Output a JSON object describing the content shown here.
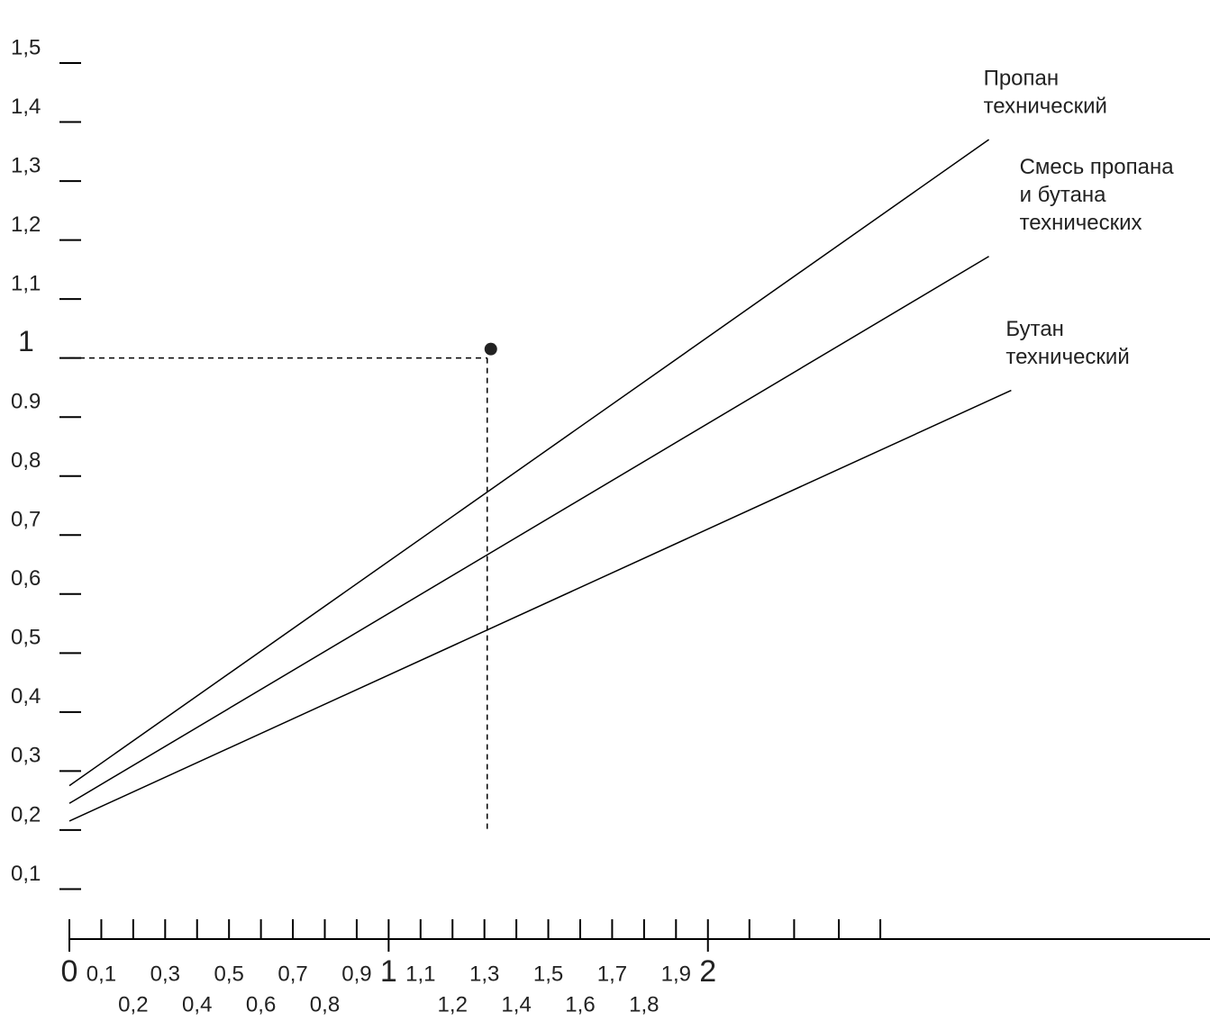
{
  "chart_data": {
    "type": "line",
    "xlim": [
      0,
      3.55
    ],
    "ylim": [
      0,
      1.5
    ],
    "xticks": [
      0,
      {
        "value": 0.1,
        "label": "0,1"
      },
      {
        "value": 0.2,
        "label": "0,2"
      },
      {
        "value": 0.3,
        "label": "0,3"
      },
      {
        "value": 0.4,
        "label": "0,4"
      },
      {
        "value": 0.5,
        "label": "0,5"
      },
      {
        "value": 0.6,
        "label": "0,6"
      },
      {
        "value": 0.7,
        "label": "0,7"
      },
      {
        "value": 0.8,
        "label": "0,8"
      },
      {
        "value": 0.9,
        "label": "0,9"
      },
      1,
      {
        "value": 1.1,
        "label": "1,1"
      },
      {
        "value": 1.2,
        "label": "1,2"
      },
      {
        "value": 1.3,
        "label": "1,3"
      },
      {
        "value": 1.4,
        "label": "1,4"
      },
      {
        "value": 1.5,
        "label": "1,5"
      },
      {
        "value": 1.6,
        "label": "1,6"
      },
      {
        "value": 1.7,
        "label": "1,7"
      },
      {
        "value": 1.8,
        "label": "1,8"
      },
      {
        "value": 1.9,
        "label": "1,9"
      },
      2
    ],
    "minor_xticks": [
      2.13,
      2.27,
      2.41,
      2.54
    ],
    "yticks": [
      {
        "value": 0.1,
        "label": "0,1"
      },
      {
        "value": 0.2,
        "label": "0,2"
      },
      {
        "value": 0.3,
        "label": "0,3"
      },
      {
        "value": 0.4,
        "label": "0,4"
      },
      {
        "value": 0.5,
        "label": "0,5"
      },
      {
        "value": 0.6,
        "label": "0,6"
      },
      {
        "value": 0.7,
        "label": "0,7"
      },
      {
        "value": 0.8,
        "label": "0,8"
      },
      {
        "value": 0.9,
        "label": "0.9"
      },
      1,
      {
        "value": 1.1,
        "label": "1,1"
      },
      {
        "value": 1.2,
        "label": "1,2"
      },
      {
        "value": 1.3,
        "label": "1,3"
      },
      {
        "value": 1.4,
        "label": "1,4"
      },
      {
        "value": 1.5,
        "label": "1,5"
      }
    ],
    "series": [
      {
        "name": [
          "Пропан",
          "технический"
        ],
        "color": "#000000",
        "x": [
          0,
          2.88
        ],
        "values": [
          0.26,
          1.355
        ]
      },
      {
        "name": [
          "Смесь пропана",
          "и бутана",
          "технических"
        ],
        "color": "#000000",
        "x": [
          0,
          2.88
        ],
        "values": [
          0.23,
          1.157
        ]
      },
      {
        "name": [
          "Бутан",
          "технический"
        ],
        "color": "#000000",
        "x": [
          0,
          2.95
        ],
        "values": [
          0.2,
          0.93
        ]
      }
    ],
    "point": {
      "x": 1.32,
      "y": 1.0
    }
  }
}
